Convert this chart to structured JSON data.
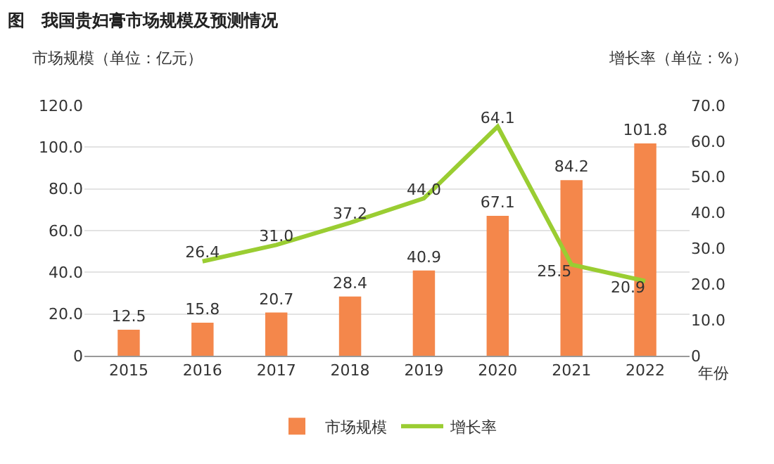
{
  "chart_data": {
    "type": "bar",
    "title": "图　我国贵妇膏市场规模及预测情况",
    "xlabel": "年份",
    "ylabel": "市场规模（单位：亿元）",
    "y2label": "增长率（单位：%）",
    "categories": [
      "2015",
      "2016",
      "2017",
      "2018",
      "2019",
      "2020",
      "2021",
      "2022"
    ],
    "series": [
      {
        "name": "市场规模",
        "color": "#f4874b",
        "values": [
          12.5,
          15.8,
          20.7,
          28.4,
          40.9,
          67.1,
          84.2,
          101.8
        ],
        "value_labels": [
          "12.5",
          "15.8",
          "20.7",
          "28.4",
          "40.9",
          "67.1",
          "84.2",
          "101.8"
        ]
      },
      {
        "name": "增长率",
        "type": "line",
        "axis": "y2",
        "color": "#9acd32",
        "values": [
          null,
          26.4,
          31,
          37.2,
          44,
          64.1,
          25.5,
          20.9
        ],
        "value_labels": [
          null,
          "26.4",
          "31.0",
          "37.2",
          "44.0",
          "64.1",
          "25.5",
          "20.9"
        ]
      }
    ],
    "ylim": [
      0,
      120
    ],
    "yticks": [
      {
        "value": 0,
        "label": "0"
      },
      {
        "value": 20,
        "label": "20.0"
      },
      {
        "value": 40,
        "label": "40.0"
      },
      {
        "value": 60,
        "label": "60.0"
      },
      {
        "value": 80,
        "label": "80.0"
      },
      {
        "value": 100,
        "label": "100.0"
      },
      {
        "value": 120,
        "label": "120.0"
      }
    ],
    "y2lim": [
      0,
      70
    ],
    "y2ticks": [
      {
        "value": 0,
        "label": "0"
      },
      {
        "value": 10,
        "label": "10.0"
      },
      {
        "value": 20,
        "label": "20.0"
      },
      {
        "value": 30,
        "label": "30.0"
      },
      {
        "value": 40,
        "label": "40.0"
      },
      {
        "value": 50,
        "label": "50.0"
      },
      {
        "value": 60,
        "label": "60.0"
      },
      {
        "value": 70,
        "label": "70.0"
      }
    ],
    "grid": "y",
    "legend": "bottom",
    "marker": "none"
  }
}
